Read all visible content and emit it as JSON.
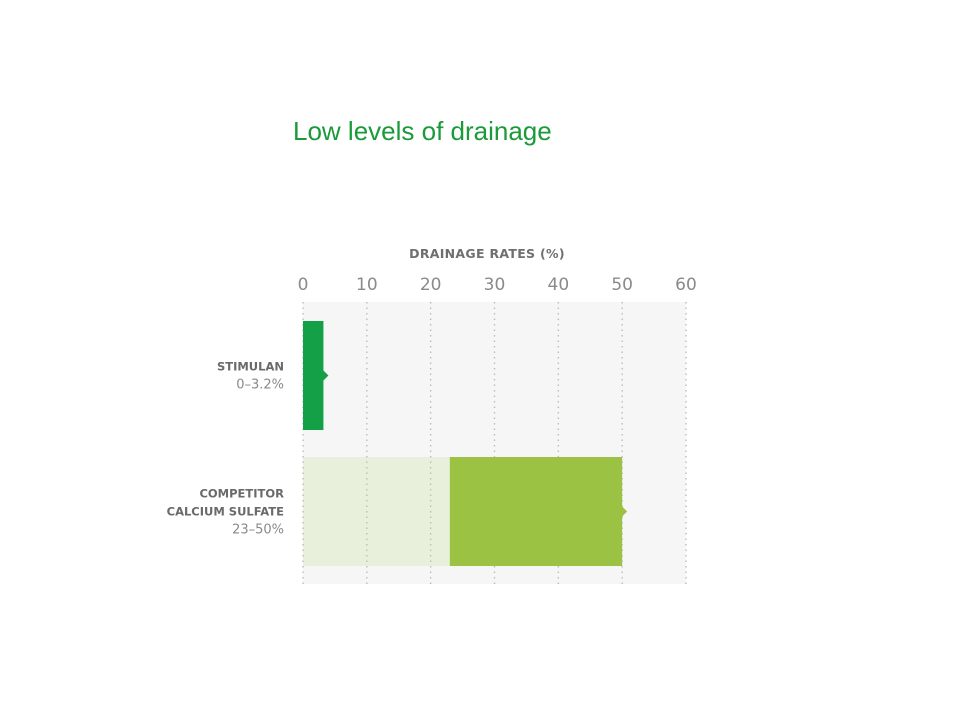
{
  "slide": {
    "title": "Low levels of drainage"
  },
  "colors": {
    "title": "#1a9a3a",
    "plot_background": "#f6f6f6",
    "stimulan_bar": "#13a046",
    "competitor_bar": "#9bc243",
    "competitor_range_background": "#e8f0dc",
    "gridline": "#bdbdbd"
  },
  "chart_data": {
    "type": "bar",
    "orientation": "horizontal",
    "title": "DRAINAGE RATES (%)",
    "xlim": [
      0,
      60
    ],
    "xticks": [
      0,
      10,
      20,
      30,
      40,
      50,
      60
    ],
    "grid": true,
    "categories": [
      {
        "name_lines": [
          "STIMULAN"
        ],
        "range_label": "0–3.2%",
        "min": 0,
        "max": 3.2,
        "bar_color": "#13a046"
      },
      {
        "name_lines": [
          "COMPETITOR",
          "CALCIUM SULFATE"
        ],
        "range_label": "23–50%",
        "min": 23,
        "max": 50,
        "bar_color": "#9bc243"
      }
    ]
  }
}
